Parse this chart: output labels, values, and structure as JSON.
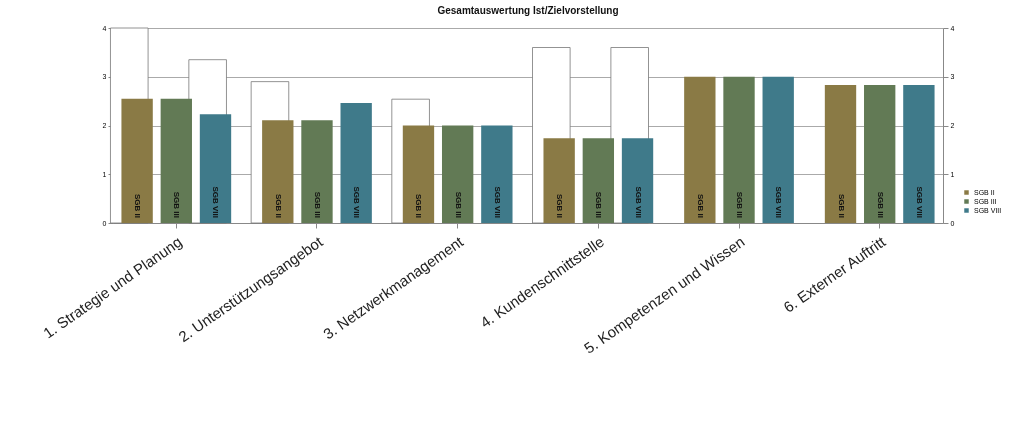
{
  "chart_data": {
    "type": "bar",
    "title": "Gesamtauswertung Ist/Zielvorstellung",
    "categories": [
      "1. Strategie und Planung",
      "2. Unterstützungsangebot",
      "3. Netzwerkmanagement",
      "4. Kundenschnittstelle",
      "5. Kompetenzen und Wissen",
      "6. Externer Auftritt"
    ],
    "series": [
      {
        "name": "SGB II",
        "color": "#8a7a45",
        "values": [
          2.55,
          2.11,
          2.0,
          1.74,
          3.0,
          2.83
        ]
      },
      {
        "color": "#ffffff",
        "values": [
          4.0,
          2.9,
          2.54,
          3.6,
          null,
          null
        ]
      },
      {
        "name": "SGB III",
        "color": "#627a55",
        "values": [
          2.55,
          2.11,
          2.0,
          1.74,
          3.0,
          2.83
        ]
      },
      {
        "name": "SGB VIII",
        "color": "#3f7a8a",
        "values": [
          2.23,
          2.46,
          2.0,
          1.74,
          3.0,
          2.83
        ]
      },
      {
        "color": "#ffffff",
        "values": [
          3.35,
          null,
          null,
          3.6,
          null,
          null
        ]
      }
    ],
    "ylim": [
      0,
      4
    ],
    "yticks": [
      0,
      1,
      2,
      3,
      4
    ],
    "y2lim": [
      0,
      4
    ],
    "y2ticks": [
      0,
      1,
      2,
      3,
      4
    ],
    "grid": "y",
    "legend": "right"
  }
}
